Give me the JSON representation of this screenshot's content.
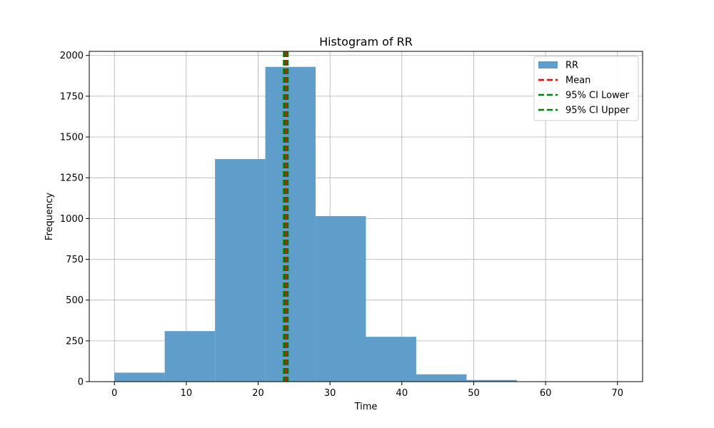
{
  "chart_data": {
    "type": "bar",
    "title": "Histogram of RR",
    "xlabel": "Time",
    "ylabel": "Frequency",
    "xlim": [
      -3.5,
      73.5
    ],
    "ylim": [
      0,
      2025
    ],
    "xticks": [
      0,
      10,
      20,
      30,
      40,
      50,
      60,
      70
    ],
    "yticks": [
      0,
      250,
      500,
      750,
      1000,
      1250,
      1500,
      1750,
      2000
    ],
    "grid": true,
    "legend_position": "top-right",
    "bins": [
      {
        "x0": 0,
        "x1": 7,
        "count": 55
      },
      {
        "x0": 7,
        "x1": 14,
        "count": 310
      },
      {
        "x0": 14,
        "x1": 21,
        "count": 1365
      },
      {
        "x0": 21,
        "x1": 28,
        "count": 1930
      },
      {
        "x0": 28,
        "x1": 35,
        "count": 1015
      },
      {
        "x0": 35,
        "x1": 42,
        "count": 275
      },
      {
        "x0": 42,
        "x1": 49,
        "count": 45
      },
      {
        "x0": 49,
        "x1": 56,
        "count": 10
      },
      {
        "x0": 56,
        "x1": 63,
        "count": 2
      },
      {
        "x0": 63,
        "x1": 70,
        "count": 1
      }
    ],
    "histogram_series": {
      "name": "RR",
      "color": "#5f9ecb"
    },
    "vertical_lines": [
      {
        "name": "Mean",
        "x": 23.85,
        "color": "#ff0000",
        "style": "dashed"
      },
      {
        "name": "95% CI Lower",
        "x": 23.6,
        "color": "#008000",
        "style": "dashed"
      },
      {
        "name": "95% CI Upper",
        "x": 24.1,
        "color": "#008000",
        "style": "dashed"
      }
    ]
  }
}
